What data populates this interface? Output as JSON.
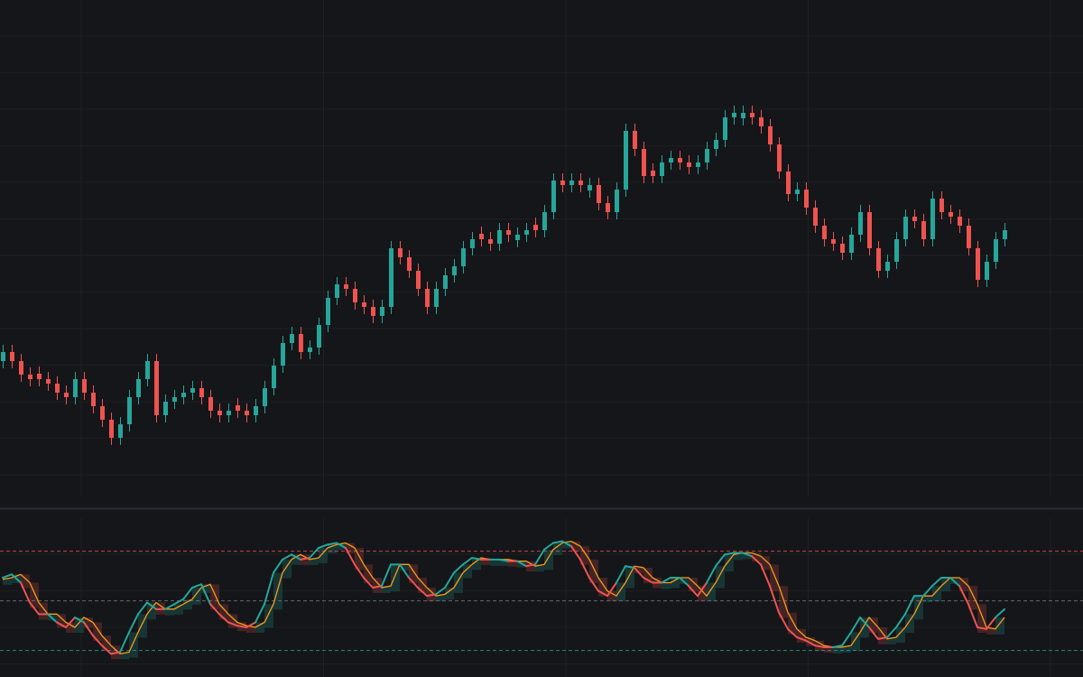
{
  "chart_data": [
    {
      "type": "candlestick",
      "up_color": "#26a69a",
      "down_color": "#ef5350",
      "ylim": [
        0,
        550
      ],
      "grid": true,
      "open": [
        150,
        160,
        150,
        135,
        136,
        130,
        125,
        115,
        110,
        130,
        115,
        100,
        85,
        65,
        80,
        110,
        130,
        150,
        90,
        105,
        110,
        115,
        120,
        110,
        95,
        90,
        101,
        95,
        90,
        100,
        120,
        145,
        170,
        180,
        160,
        165,
        190,
        220,
        235,
        230,
        215,
        210,
        200,
        210,
        275,
        265,
        250,
        230,
        210,
        230,
        245,
        255,
        275,
        291,
        285,
        280,
        295,
        284,
        290,
        301,
        295,
        315,
        350,
        345,
        350,
        339,
        345,
        325,
        315,
        340,
        405,
        385,
        361,
        355,
        370,
        375,
        370,
        365,
        370,
        385,
        395,
        420,
        419,
        425,
        420,
        410,
        390,
        360,
        335,
        340,
        320,
        300,
        285,
        280,
        270,
        290,
        315,
        275,
        250,
        260,
        285,
        310,
        305,
        285,
        330,
        315,
        310,
        300,
        275,
        240,
        260,
        285
      ],
      "high": [
        168,
        168,
        158,
        143,
        144,
        138,
        133,
        123,
        138,
        138,
        123,
        108,
        93,
        88,
        118,
        138,
        158,
        158,
        113,
        118,
        123,
        128,
        128,
        118,
        103,
        103,
        109,
        103,
        108,
        128,
        153,
        178,
        188,
        188,
        173,
        198,
        228,
        243,
        243,
        238,
        223,
        218,
        218,
        283,
        283,
        273,
        258,
        238,
        238,
        253,
        263,
        283,
        293,
        299,
        293,
        303,
        303,
        298,
        303,
        309,
        323,
        358,
        358,
        358,
        358,
        353,
        353,
        333,
        348,
        413,
        413,
        393,
        369,
        378,
        383,
        383,
        378,
        378,
        393,
        403,
        428,
        433,
        433,
        433,
        428,
        418,
        398,
        368,
        348,
        348,
        328,
        308,
        293,
        288,
        298,
        323,
        323,
        283,
        268,
        293,
        318,
        318,
        313,
        338,
        338,
        323,
        318,
        308,
        283,
        268,
        293,
        303
      ],
      "low": [
        142,
        142,
        127,
        122,
        122,
        117,
        107,
        102,
        102,
        107,
        92,
        77,
        57,
        57,
        72,
        102,
        122,
        82,
        82,
        97,
        102,
        107,
        102,
        87,
        82,
        82,
        87,
        82,
        82,
        92,
        112,
        137,
        162,
        152,
        152,
        157,
        182,
        212,
        222,
        207,
        202,
        192,
        192,
        202,
        257,
        242,
        222,
        202,
        202,
        222,
        237,
        247,
        267,
        277,
        272,
        272,
        282,
        276,
        282,
        287,
        287,
        307,
        337,
        337,
        337,
        331,
        317,
        307,
        307,
        332,
        377,
        347,
        347,
        347,
        362,
        362,
        357,
        357,
        362,
        377,
        387,
        412,
        411,
        412,
        402,
        382,
        352,
        327,
        327,
        312,
        292,
        277,
        272,
        262,
        262,
        282,
        267,
        242,
        242,
        252,
        277,
        297,
        277,
        277,
        307,
        302,
        292,
        267,
        232,
        232,
        252,
        277
      ],
      "close": [
        160,
        150,
        135,
        130,
        130,
        125,
        115,
        110,
        130,
        115,
        100,
        85,
        65,
        80,
        110,
        130,
        150,
        90,
        105,
        110,
        115,
        120,
        110,
        95,
        90,
        95,
        95,
        90,
        100,
        120,
        145,
        170,
        180,
        160,
        165,
        190,
        220,
        235,
        230,
        215,
        210,
        200,
        210,
        275,
        265,
        250,
        230,
        210,
        230,
        245,
        255,
        275,
        285,
        285,
        280,
        295,
        290,
        290,
        295,
        295,
        315,
        350,
        345,
        350,
        345,
        345,
        325,
        315,
        340,
        405,
        385,
        355,
        355,
        370,
        375,
        370,
        365,
        370,
        385,
        395,
        420,
        425,
        425,
        420,
        410,
        390,
        360,
        335,
        340,
        320,
        300,
        285,
        280,
        270,
        290,
        315,
        275,
        250,
        260,
        285,
        310,
        305,
        285,
        330,
        315,
        310,
        300,
        275,
        240,
        260,
        285,
        295
      ]
    },
    {
      "type": "line",
      "ylim": [
        4,
        100
      ],
      "grid": true,
      "up_color": "#26a69a",
      "down_color": "#ef5350",
      "levels": [
        {
          "value": 80,
          "color": "#ef5350"
        },
        {
          "value": 50,
          "color": "#787b86"
        },
        {
          "value": 20,
          "color": "#26a69a"
        }
      ],
      "series": [
        {
          "color": "#ef5350",
          "values": [
            64,
            66,
            61,
            49,
            42,
            42,
            37,
            34,
            40,
            37,
            29,
            23,
            18,
            19,
            31,
            42,
            49,
            45,
            45,
            48,
            51,
            58,
            60,
            48,
            42,
            37,
            35,
            34,
            37,
            48,
            67,
            75,
            78,
            75,
            76,
            82,
            84,
            85,
            82,
            72,
            64,
            58,
            59,
            72,
            72,
            64,
            58,
            53,
            54,
            58,
            67,
            72,
            76,
            75,
            75,
            75,
            74,
            74,
            71,
            72,
            81,
            85,
            86,
            83,
            75,
            64,
            56,
            53,
            61,
            71,
            70,
            64,
            61,
            61,
            64,
            64,
            59,
            53,
            61,
            71,
            78,
            79,
            79,
            77,
            72,
            59,
            43,
            33,
            28,
            26,
            23,
            22,
            22,
            23,
            31,
            40,
            34,
            27,
            28,
            34,
            42,
            53,
            53,
            59,
            64,
            64,
            59,
            48,
            34,
            33,
            40,
            45
          ]
        },
        {
          "color": "#f59c1a",
          "values": [
            63,
            64,
            66,
            61,
            49,
            42,
            42,
            37,
            34,
            40,
            37,
            29,
            23,
            18,
            19,
            31,
            42,
            49,
            45,
            45,
            48,
            51,
            58,
            60,
            48,
            42,
            37,
            35,
            34,
            37,
            48,
            67,
            75,
            78,
            75,
            76,
            82,
            84,
            85,
            82,
            72,
            64,
            58,
            59,
            72,
            72,
            64,
            58,
            53,
            54,
            58,
            67,
            72,
            76,
            75,
            75,
            75,
            74,
            74,
            71,
            72,
            81,
            85,
            86,
            83,
            75,
            64,
            56,
            53,
            61,
            71,
            70,
            64,
            61,
            61,
            64,
            64,
            59,
            53,
            61,
            71,
            78,
            79,
            79,
            77,
            72,
            59,
            43,
            33,
            28,
            26,
            23,
            22,
            22,
            23,
            31,
            40,
            34,
            27,
            28,
            34,
            42,
            53,
            53,
            59,
            64,
            64,
            59,
            48,
            34,
            33,
            40
          ]
        }
      ]
    }
  ]
}
